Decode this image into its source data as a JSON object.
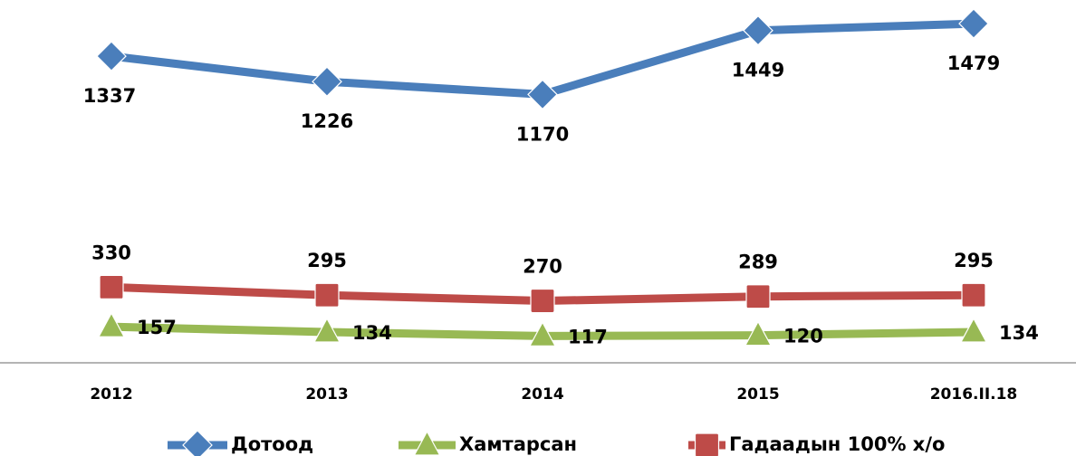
{
  "chart_data": {
    "type": "line",
    "categories": [
      "2012",
      "2013",
      "2014",
      "2015",
      "2016.II.18"
    ],
    "series": [
      {
        "name": "Дотоод",
        "color": "#4a7ebb",
        "values": [
          1337,
          1226,
          1170,
          1449,
          1479
        ]
      },
      {
        "name": "Хамтарсан",
        "color": "#98b954",
        "values": [
          157,
          134,
          117,
          120,
          134
        ]
      },
      {
        "name": "Гадаадын 100% х/о",
        "color": "#be4b48",
        "values": [
          330,
          295,
          270,
          289,
          295
        ]
      }
    ],
    "ylim": [
      0,
      1580
    ]
  }
}
